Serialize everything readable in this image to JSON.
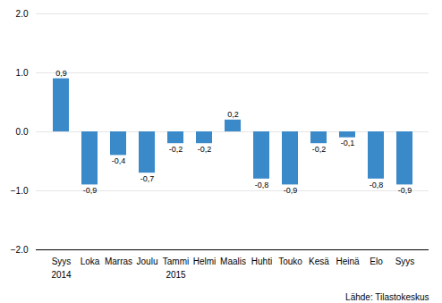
{
  "chart_data": {
    "type": "bar",
    "categories": [
      "Syys",
      "Loka",
      "Marras",
      "Joulu",
      "Tammi",
      "Helmi",
      "Maalis",
      "Huhti",
      "Touko",
      "Kesä",
      "Heinä",
      "Elo",
      "Syys"
    ],
    "values": [
      0.9,
      -0.9,
      -0.4,
      -0.7,
      -0.2,
      -0.2,
      0.2,
      -0.8,
      -0.9,
      -0.2,
      -0.1,
      -0.8,
      -0.9
    ],
    "value_labels": [
      "0,9",
      "-0,9",
      "-0,4",
      "-0,7",
      "-0,2",
      "-0,2",
      "0,2",
      "-0,8",
      "-0,9",
      "-0,2",
      "-0,1",
      "-0,8",
      "-0,9"
    ],
    "color": "#3a89c9",
    "ylim": [
      -2,
      2
    ],
    "yticks": [
      -2,
      -1,
      0,
      1,
      2
    ],
    "grid": true,
    "data_labels": true,
    "annotations": [
      {
        "text": "2014",
        "x": 0
      },
      {
        "text": "2015",
        "x": 4
      }
    ],
    "caption": "Lähde: Tilastokeskus"
  }
}
